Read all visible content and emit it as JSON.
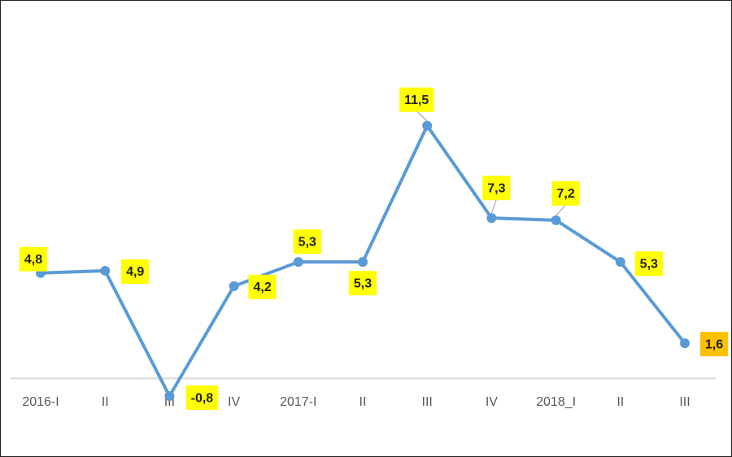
{
  "chart_data": {
    "type": "line",
    "categories": [
      "2016-I",
      "II",
      "III",
      "IV",
      "2017-I",
      "II",
      "III",
      "IV",
      "2018_I",
      "II",
      "III"
    ],
    "series": [
      {
        "color": "#5b9bd5",
        "values": [
          4.8,
          4.9,
          -0.8,
          4.2,
          5.3,
          5.3,
          11.5,
          7.3,
          7.2,
          5.3,
          1.6
        ],
        "value_labels": [
          "4,8",
          "4,9",
          "-0,8",
          "4,2",
          "5,3",
          "5,3",
          "11,5",
          "7,3",
          "7,2",
          "5,3",
          "1,6"
        ]
      }
    ],
    "label_color": "#ffff00",
    "last_label_color": "#ffc000",
    "ylim": [
      -3.5,
      17
    ]
  }
}
